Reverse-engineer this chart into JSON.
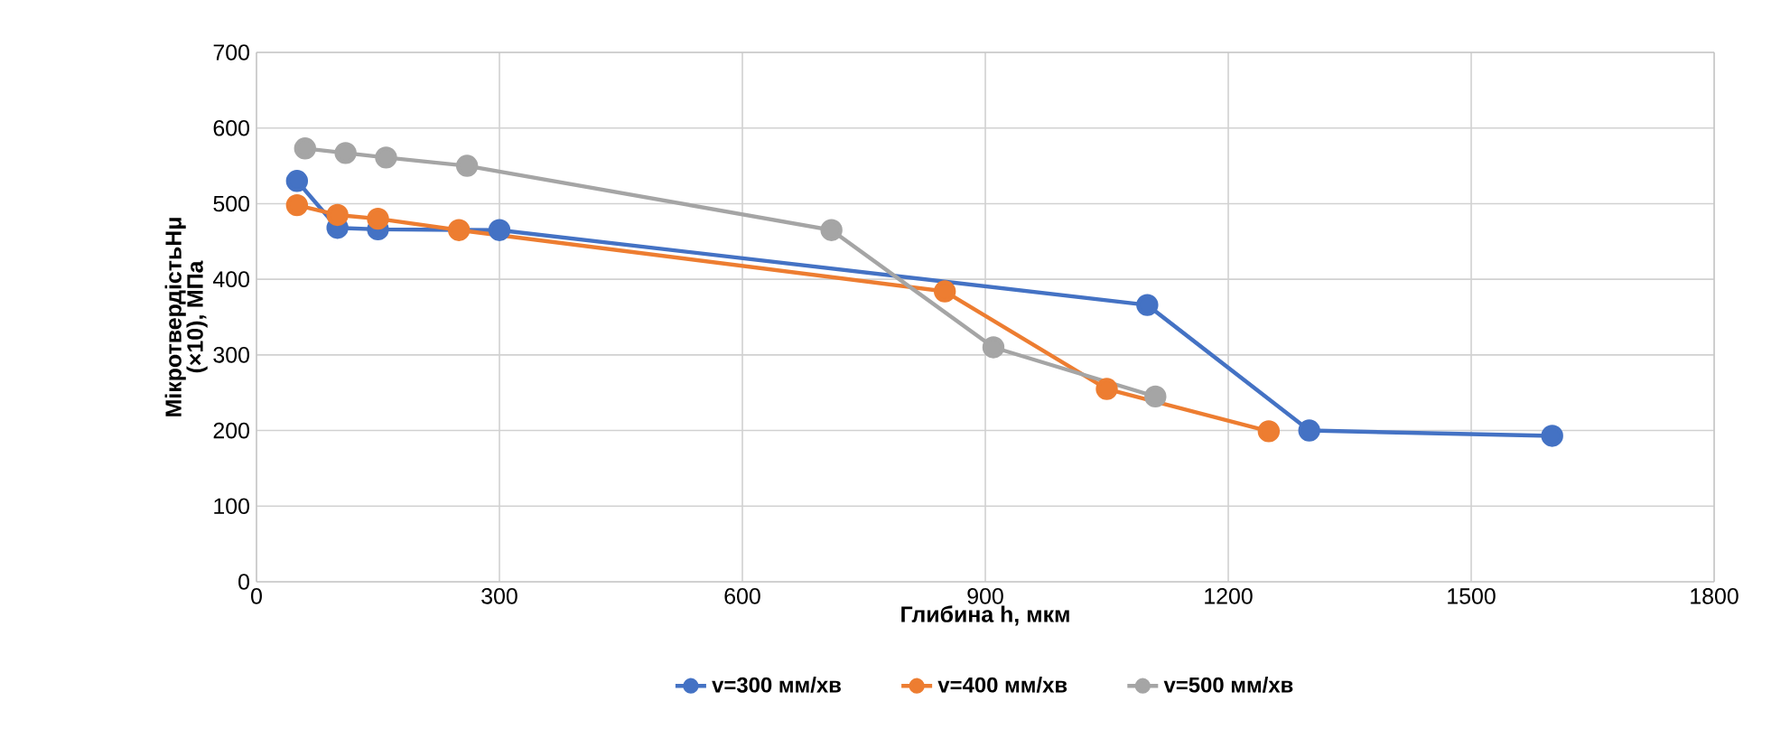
{
  "chart_data": {
    "type": "line",
    "xlabel": "Глибина h, мкм",
    "ylabel": "МікротвердістьНμ (×10), МПа",
    "xlim": [
      0,
      1800
    ],
    "xticks": [
      0,
      300,
      600,
      900,
      1200,
      1500,
      1800
    ],
    "ylim": [
      0,
      700
    ],
    "yticks": [
      0,
      100,
      200,
      300,
      400,
      500,
      600,
      700
    ],
    "grid": true,
    "legend": "bottom",
    "marker": "circle",
    "line_style": "solid",
    "series": [
      {
        "name": "v=300 мм/хв",
        "color": "#4472c4",
        "x": [
          50,
          100,
          150,
          300,
          1100,
          1300,
          1600
        ],
        "values": [
          530,
          468,
          466,
          465,
          366,
          200,
          193
        ]
      },
      {
        "name": "v=400 мм/хв",
        "color": "#ed7d31",
        "x": [
          50,
          100,
          150,
          250,
          850,
          1050,
          1250
        ],
        "values": [
          498,
          485,
          480,
          465,
          384,
          255,
          199
        ]
      },
      {
        "name": "v=500 мм/хв",
        "color": "#a5a5a5",
        "x": [
          60,
          110,
          160,
          260,
          710,
          910,
          1110
        ],
        "values": [
          573,
          567,
          561,
          550,
          465,
          310,
          245
        ]
      }
    ]
  }
}
